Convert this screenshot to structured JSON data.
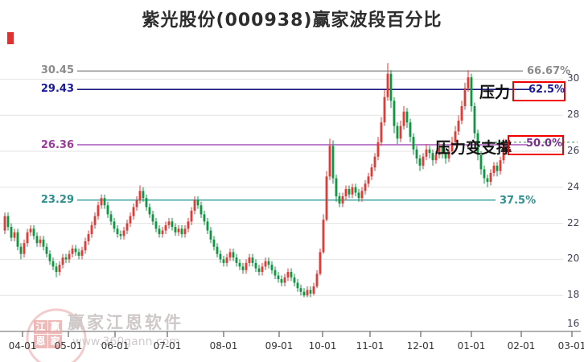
{
  "title": "紫光股份(000938)赢家波段百分比",
  "watermark": {
    "brand": "赢家江恩软件",
    "url": "www.360gann.com",
    "seal": [
      "江",
      "赢",
      "恩",
      "家"
    ]
  },
  "chart_data": {
    "type": "candlestick",
    "title": "紫光股份(000938)赢家波段百分比",
    "ylim": [
      16,
      30
    ],
    "grid": true,
    "y_axis": {
      "ticks": [
        "30",
        "28",
        "26",
        "24",
        "22",
        "20",
        "18",
        "16"
      ]
    },
    "x_axis": {
      "ticks": [
        "04-01",
        "05-01",
        "06-01",
        "07-01",
        "08-01",
        "09-01",
        "10-01",
        "11-01",
        "12-01",
        "01-01",
        "02-01",
        "03-01"
      ]
    },
    "levels": [
      {
        "price": "30.45",
        "percent": "66.67%",
        "color": "#9a9a9a",
        "label_color": "#8c8c8c",
        "boxed": false,
        "annotation": ""
      },
      {
        "price": "29.43",
        "percent": "62.5%",
        "color": "#181880",
        "label_color": "#1a1a99",
        "boxed": true,
        "annotation": "压力"
      },
      {
        "price": "26.36",
        "percent": "50.0%",
        "color": "#b06ac0",
        "label_color": "#993d99",
        "boxed": true,
        "annotation": "压力变支撑"
      },
      {
        "price": "23.29",
        "percent": "37.5%",
        "color": "#4aa8a8",
        "label_color": "#2e8f8f",
        "boxed": false,
        "annotation": ""
      }
    ],
    "last_price": 26.5,
    "up_color": "#e53935",
    "down_color": "#0e9640",
    "candles": [
      [
        21.6,
        22.6,
        21.4,
        22.4
      ],
      [
        22.4,
        22.6,
        21.6,
        21.8
      ],
      [
        21.8,
        22.0,
        21.0,
        21.2
      ],
      [
        21.2,
        21.7,
        21.0,
        21.5
      ],
      [
        21.5,
        21.7,
        20.5,
        20.7
      ],
      [
        20.7,
        20.9,
        20.0,
        20.3
      ],
      [
        20.3,
        21.1,
        20.1,
        20.9
      ],
      [
        20.9,
        21.7,
        20.7,
        21.5
      ],
      [
        21.5,
        21.9,
        21.3,
        21.7
      ],
      [
        21.7,
        21.9,
        21.1,
        21.3
      ],
      [
        21.3,
        21.5,
        20.7,
        20.9
      ],
      [
        20.9,
        21.3,
        20.7,
        21.1
      ],
      [
        21.1,
        21.3,
        20.5,
        20.7
      ],
      [
        20.7,
        20.9,
        20.1,
        20.3
      ],
      [
        20.3,
        20.5,
        19.7,
        19.9
      ],
      [
        19.9,
        20.1,
        19.4,
        19.6
      ],
      [
        19.6,
        19.8,
        19.0,
        19.3
      ],
      [
        19.3,
        19.9,
        19.1,
        19.7
      ],
      [
        19.7,
        20.3,
        19.5,
        20.1
      ],
      [
        20.1,
        20.3,
        19.8,
        20.0
      ],
      [
        20.0,
        20.5,
        19.8,
        20.3
      ],
      [
        20.3,
        20.8,
        20.1,
        20.6
      ],
      [
        20.6,
        20.8,
        20.2,
        20.4
      ],
      [
        20.4,
        20.6,
        20.0,
        20.2
      ],
      [
        20.2,
        20.7,
        20.0,
        20.5
      ],
      [
        20.5,
        21.2,
        20.3,
        21.0
      ],
      [
        21.0,
        21.6,
        20.8,
        21.4
      ],
      [
        21.4,
        22.1,
        21.2,
        21.9
      ],
      [
        21.9,
        22.6,
        21.7,
        22.4
      ],
      [
        22.4,
        23.2,
        22.2,
        23.0
      ],
      [
        23.0,
        23.6,
        22.8,
        23.4
      ],
      [
        23.4,
        23.6,
        22.8,
        23.0
      ],
      [
        23.0,
        23.2,
        22.3,
        22.5
      ],
      [
        22.5,
        22.7,
        21.9,
        22.1
      ],
      [
        22.1,
        22.3,
        21.5,
        21.7
      ],
      [
        21.7,
        21.9,
        21.2,
        21.4
      ],
      [
        21.4,
        21.6,
        21.1,
        21.3
      ],
      [
        21.3,
        21.8,
        21.1,
        21.6
      ],
      [
        21.6,
        22.2,
        21.4,
        22.0
      ],
      [
        22.0,
        22.6,
        21.8,
        22.4
      ],
      [
        22.4,
        23.1,
        22.2,
        22.9
      ],
      [
        22.9,
        23.5,
        22.7,
        23.3
      ],
      [
        23.3,
        24.1,
        23.1,
        23.8
      ],
      [
        23.8,
        24.0,
        23.2,
        23.4
      ],
      [
        23.4,
        23.6,
        22.7,
        22.9
      ],
      [
        22.9,
        23.1,
        22.3,
        22.5
      ],
      [
        22.5,
        22.7,
        21.9,
        22.1
      ],
      [
        22.1,
        22.3,
        21.5,
        21.7
      ],
      [
        21.7,
        21.9,
        21.2,
        21.4
      ],
      [
        21.4,
        21.8,
        21.2,
        21.6
      ],
      [
        21.6,
        22.1,
        21.4,
        21.9
      ],
      [
        21.9,
        22.3,
        21.7,
        22.1
      ],
      [
        22.1,
        22.3,
        21.6,
        21.8
      ],
      [
        21.8,
        22.0,
        21.3,
        21.5
      ],
      [
        21.5,
        21.9,
        21.3,
        21.7
      ],
      [
        21.7,
        21.9,
        21.2,
        21.4
      ],
      [
        21.4,
        21.9,
        21.2,
        21.7
      ],
      [
        21.7,
        22.3,
        21.5,
        22.1
      ],
      [
        22.1,
        22.9,
        21.9,
        22.7
      ],
      [
        22.7,
        23.5,
        22.5,
        23.3
      ],
      [
        23.3,
        23.5,
        22.8,
        23.0
      ],
      [
        23.0,
        23.2,
        22.3,
        22.5
      ],
      [
        22.5,
        22.7,
        21.9,
        22.1
      ],
      [
        22.1,
        22.3,
        21.4,
        21.6
      ],
      [
        21.6,
        21.8,
        20.9,
        21.1
      ],
      [
        21.1,
        21.3,
        20.5,
        20.7
      ],
      [
        20.7,
        20.9,
        20.1,
        20.3
      ],
      [
        20.3,
        20.5,
        19.8,
        20.0
      ],
      [
        20.0,
        20.2,
        19.6,
        19.8
      ],
      [
        19.8,
        20.3,
        19.6,
        20.1
      ],
      [
        20.1,
        20.6,
        19.9,
        20.4
      ],
      [
        20.4,
        20.6,
        19.9,
        20.1
      ],
      [
        20.1,
        20.3,
        19.6,
        19.8
      ],
      [
        19.8,
        20.0,
        19.4,
        19.6
      ],
      [
        19.6,
        19.8,
        19.2,
        19.4
      ],
      [
        19.4,
        20.0,
        19.2,
        19.8
      ],
      [
        19.8,
        20.3,
        19.6,
        20.1
      ],
      [
        20.1,
        20.3,
        19.6,
        19.8
      ],
      [
        19.8,
        20.0,
        19.3,
        19.5
      ],
      [
        19.5,
        19.7,
        19.1,
        19.3
      ],
      [
        19.3,
        19.8,
        19.1,
        19.6
      ],
      [
        19.6,
        20.1,
        19.4,
        19.9
      ],
      [
        19.9,
        20.1,
        19.5,
        19.7
      ],
      [
        19.7,
        19.9,
        19.2,
        19.4
      ],
      [
        19.4,
        19.6,
        18.9,
        19.1
      ],
      [
        19.1,
        19.3,
        18.7,
        18.9
      ],
      [
        18.9,
        19.1,
        18.5,
        18.7
      ],
      [
        18.7,
        19.2,
        18.5,
        19.0
      ],
      [
        19.0,
        19.5,
        18.8,
        19.3
      ],
      [
        19.3,
        19.5,
        18.8,
        19.0
      ],
      [
        19.0,
        19.2,
        18.5,
        18.7
      ],
      [
        18.7,
        18.9,
        18.2,
        18.4
      ],
      [
        18.4,
        18.6,
        18.0,
        18.2
      ],
      [
        18.2,
        18.4,
        17.9,
        18.0
      ],
      [
        18.0,
        18.5,
        17.9,
        18.3
      ],
      [
        18.3,
        18.5,
        17.9,
        18.1
      ],
      [
        18.1,
        18.7,
        18.0,
        18.5
      ],
      [
        18.5,
        19.4,
        18.4,
        19.2
      ],
      [
        19.2,
        20.6,
        19.1,
        20.4
      ],
      [
        20.4,
        22.5,
        20.3,
        22.2
      ],
      [
        22.2,
        24.9,
        22.1,
        24.6
      ],
      [
        24.6,
        26.7,
        24.4,
        26.3
      ],
      [
        26.3,
        26.6,
        24.2,
        24.5
      ],
      [
        24.5,
        24.7,
        23.2,
        23.5
      ],
      [
        23.5,
        23.7,
        22.9,
        23.1
      ],
      [
        23.1,
        23.7,
        22.9,
        23.5
      ],
      [
        23.5,
        24.1,
        23.3,
        23.9
      ],
      [
        23.9,
        24.1,
        23.4,
        23.6
      ],
      [
        23.6,
        24.2,
        23.4,
        24.0
      ],
      [
        24.0,
        24.2,
        23.5,
        23.7
      ],
      [
        23.7,
        23.9,
        23.2,
        23.4
      ],
      [
        23.4,
        24.0,
        23.2,
        23.8
      ],
      [
        23.8,
        24.4,
        23.6,
        24.2
      ],
      [
        24.2,
        24.8,
        24.0,
        24.6
      ],
      [
        24.6,
        25.3,
        24.4,
        25.1
      ],
      [
        25.1,
        25.9,
        24.9,
        25.7
      ],
      [
        25.7,
        26.8,
        25.5,
        26.5
      ],
      [
        26.5,
        27.9,
        26.3,
        27.6
      ],
      [
        27.6,
        29.4,
        27.4,
        29.0
      ],
      [
        29.0,
        30.9,
        28.8,
        30.3
      ],
      [
        30.3,
        30.5,
        28.4,
        28.8
      ],
      [
        28.8,
        29.0,
        27.0,
        27.4
      ],
      [
        27.4,
        27.6,
        26.4,
        26.7
      ],
      [
        26.7,
        27.7,
        26.5,
        27.4
      ],
      [
        27.4,
        28.5,
        27.2,
        28.2
      ],
      [
        28.2,
        28.4,
        27.3,
        27.6
      ],
      [
        27.6,
        27.8,
        26.5,
        26.8
      ],
      [
        26.8,
        27.0,
        25.8,
        26.1
      ],
      [
        26.1,
        26.3,
        25.3,
        25.6
      ],
      [
        25.6,
        25.8,
        24.9,
        25.2
      ],
      [
        25.2,
        25.9,
        25.0,
        25.7
      ],
      [
        25.7,
        26.4,
        25.5,
        26.1
      ],
      [
        26.1,
        26.3,
        25.6,
        25.9
      ],
      [
        25.9,
        26.1,
        25.2,
        25.5
      ],
      [
        25.5,
        26.0,
        25.3,
        25.8
      ],
      [
        25.8,
        26.5,
        25.6,
        26.2
      ],
      [
        26.2,
        26.4,
        25.6,
        25.9
      ],
      [
        25.9,
        26.1,
        25.3,
        25.6
      ],
      [
        25.6,
        26.3,
        25.4,
        26.0
      ],
      [
        26.0,
        26.8,
        25.8,
        26.5
      ],
      [
        26.5,
        27.4,
        26.3,
        27.1
      ],
      [
        27.1,
        28.0,
        26.9,
        27.7
      ],
      [
        27.7,
        28.8,
        27.5,
        28.5
      ],
      [
        28.5,
        29.8,
        28.3,
        29.5
      ],
      [
        29.5,
        30.5,
        29.3,
        30.1
      ],
      [
        30.1,
        30.3,
        28.2,
        28.5
      ],
      [
        28.5,
        28.7,
        26.7,
        27.0
      ],
      [
        27.0,
        27.2,
        25.5,
        25.8
      ],
      [
        25.8,
        26.0,
        24.7,
        25.0
      ],
      [
        25.0,
        25.2,
        24.2,
        24.5
      ],
      [
        24.5,
        24.7,
        24.0,
        24.3
      ],
      [
        24.3,
        25.0,
        24.1,
        24.8
      ],
      [
        24.8,
        25.4,
        24.6,
        25.2
      ],
      [
        25.2,
        25.4,
        24.6,
        24.9
      ],
      [
        24.9,
        25.7,
        24.7,
        25.5
      ],
      [
        25.5,
        26.7,
        25.3,
        26.5
      ]
    ]
  }
}
